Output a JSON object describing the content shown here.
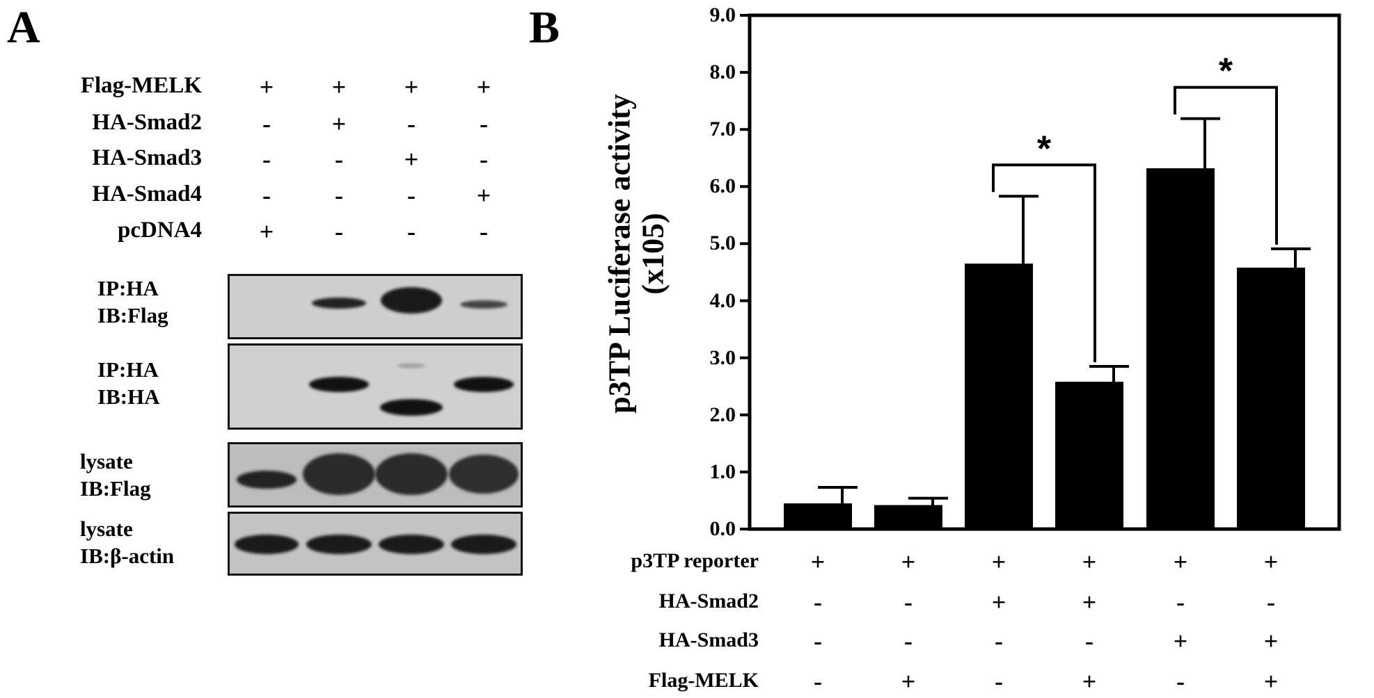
{
  "panel_a": {
    "letter": "A",
    "conditions": [
      {
        "label": "Flag-MELK",
        "marks": [
          "+",
          "+",
          "+",
          "+"
        ]
      },
      {
        "label": "HA-Smad2",
        "marks": [
          "-",
          "+",
          "-",
          "-"
        ]
      },
      {
        "label": "HA-Smad3",
        "marks": [
          "-",
          "-",
          "+",
          "-"
        ]
      },
      {
        "label": "HA-Smad4",
        "marks": [
          "-",
          "-",
          "-",
          "+"
        ]
      },
      {
        "label": "pcDNA4",
        "marks": [
          "+",
          "-",
          "-",
          "-"
        ]
      }
    ],
    "blots": [
      {
        "label_line1": "IP:HA",
        "label_line2": "IB:Flag"
      },
      {
        "label_line1": "IP:HA",
        "label_line2": "IB:HA"
      },
      {
        "label_line1": "lysate",
        "label_line2": "IB:Flag"
      },
      {
        "label_line1": "lysate",
        "label_line2": "IB:β-actin"
      }
    ]
  },
  "panel_b": {
    "letter": "B",
    "conditions": [
      {
        "label": "p3TP reporter",
        "marks": [
          "+",
          "+",
          "+",
          "+",
          "+",
          "+"
        ]
      },
      {
        "label": "HA-Smad2",
        "marks": [
          "-",
          "-",
          "+",
          "+",
          "-",
          "-"
        ]
      },
      {
        "label": "HA-Smad3",
        "marks": [
          "-",
          "-",
          "-",
          "-",
          "+",
          "+"
        ]
      },
      {
        "label": "Flag-MELK",
        "marks": [
          "-",
          "+",
          "-",
          "+",
          "-",
          "+"
        ]
      }
    ],
    "significance_mark": "*"
  },
  "chart_data": {
    "type": "bar",
    "ylabel_line1": "p3TP Luciferase activity",
    "ylabel_line2": "(x105)",
    "ylim": [
      0,
      9
    ],
    "yticks": [
      "0.0",
      "1.0",
      "2.0",
      "3.0",
      "4.0",
      "5.0",
      "6.0",
      "7.0",
      "8.0",
      "9.0"
    ],
    "values": [
      0.45,
      0.42,
      4.65,
      2.58,
      6.32,
      4.58
    ],
    "errors": [
      0.28,
      0.12,
      1.18,
      0.27,
      0.87,
      0.33
    ],
    "bar_color": "#000000",
    "significance": [
      {
        "from": 2,
        "to": 3,
        "label": "*"
      },
      {
        "from": 4,
        "to": 5,
        "label": "*"
      }
    ]
  }
}
